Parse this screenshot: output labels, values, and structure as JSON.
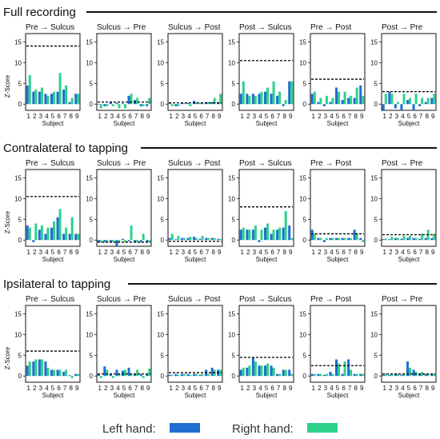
{
  "sections": [
    {
      "title": "Full recording",
      "panels": [
        {
          "title": "Pre → Sulcus"
        },
        {
          "title": "Sulcus → Pre"
        },
        {
          "title": "Sulcus → Post"
        },
        {
          "title": "Post → Sulcus"
        },
        {
          "title": "Pre → Post"
        },
        {
          "title": "Post → Pre"
        }
      ]
    },
    {
      "title": "Contralateral to tapping",
      "panels": [
        {
          "title": "Pre → Sulcus"
        },
        {
          "title": "Sulcus → Pre"
        },
        {
          "title": "Sulcus → Post"
        },
        {
          "title": "Post → Sulcus"
        },
        {
          "title": "Pre → Post"
        },
        {
          "title": "Post → Pre"
        }
      ]
    },
    {
      "title": "Ipsilateral to tapping",
      "panels": [
        {
          "title": "Pre → Sulcus"
        },
        {
          "title": "Sulcus → Pre"
        },
        {
          "title": "Sulcus → Post"
        },
        {
          "title": "Post → Sulcus"
        },
        {
          "title": "Pre → Post"
        },
        {
          "title": "Post → Pre"
        }
      ]
    }
  ],
  "axes": {
    "ylabel": "Z-Score",
    "xlabel": "Subject",
    "yticks": [
      "0",
      "5",
      "10",
      "15"
    ]
  },
  "legend": {
    "left_label": "Left hand:",
    "right_label": "Right hand:"
  },
  "colors": {
    "left": "#1f6fd1",
    "right": "#2fd18a",
    "threshold": "#000000"
  },
  "chart_data": {
    "type": "bar",
    "categories": [
      "1",
      "2",
      "3",
      "4",
      "5",
      "6",
      "7",
      "8",
      "9"
    ],
    "ylim": [
      -1.5,
      17
    ],
    "ylabel": "Z-Score",
    "xlabel": "Subject",
    "series_names": [
      "Left hand",
      "Right hand"
    ],
    "rows": [
      {
        "title": "Full recording",
        "panels": [
          {
            "title": "Pre → Sulcus",
            "threshold": 14,
            "left": [
              4.5,
              3,
              3,
              2.5,
              2.5,
              3,
              3.5,
              0.5,
              2.5
            ],
            "right": [
              7,
              3.5,
              4,
              2,
              3,
              7.5,
              4.5,
              1.5,
              2.5
            ]
          },
          {
            "title": "Sulcus → Pre",
            "threshold": 0.5,
            "left": [
              0,
              -0.5,
              0.5,
              0.3,
              0.2,
              2,
              1,
              -0.5,
              -0.5
            ],
            "right": [
              -1,
              -0.5,
              -0.5,
              -1,
              -1,
              2.5,
              1.5,
              -0.5,
              1.5
            ]
          },
          {
            "title": "Sulcus → Post",
            "threshold": 0.3,
            "left": [
              0.2,
              -0.5,
              0.3,
              0.3,
              0.8,
              0.2,
              0.5,
              0.5,
              0.5
            ],
            "right": [
              -0.5,
              -0.5,
              0.2,
              -0.5,
              0.5,
              0.3,
              0.5,
              1.5,
              2.5
            ]
          },
          {
            "title": "Post → Sulcus",
            "threshold": 10.5,
            "left": [
              2.5,
              2.5,
              2.5,
              2.5,
              3,
              2.5,
              2,
              -0.5,
              5.5
            ],
            "right": [
              5.5,
              2,
              2,
              3,
              4,
              5.5,
              3,
              1,
              5.5
            ]
          },
          {
            "title": "Pre → Post",
            "threshold": 6,
            "left": [
              2.5,
              0.5,
              -0.5,
              0.5,
              4,
              1,
              1.5,
              1.5,
              4.5
            ],
            "right": [
              3,
              1.5,
              2,
              1.5,
              3,
              3,
              2,
              4,
              2
            ]
          },
          {
            "title": "Post → Pre",
            "threshold": 3,
            "left": [
              -1.5,
              3,
              -1,
              -1.5,
              1,
              -1.5,
              -0.5,
              0.5,
              1.5
            ],
            "right": [
              2.5,
              2.5,
              0.5,
              2.5,
              1.5,
              2.5,
              1.5,
              1.5,
              2.5
            ]
          }
        ]
      },
      {
        "title": "Contralateral to tapping",
        "panels": [
          {
            "title": "Pre → Sulcus",
            "threshold": 10.5,
            "left": [
              3.5,
              -0.5,
              2.5,
              1.5,
              3,
              5.5,
              1.5,
              1.5,
              1.5
            ],
            "right": [
              3,
              4,
              3.5,
              3,
              4.5,
              7.5,
              3,
              5.5,
              1.5
            ]
          },
          {
            "title": "Sulcus → Pre",
            "threshold": -0.5,
            "left": [
              -0.5,
              -0.5,
              -0.5,
              -1.5,
              0.3,
              -0.3,
              -0.5,
              -0.5,
              -0.5
            ],
            "right": [
              -0.5,
              -0.5,
              -0.5,
              -0.5,
              -0.5,
              3.5,
              -0.5,
              1.5,
              -0.5
            ]
          },
          {
            "title": "Sulcus → Post",
            "threshold": -0.3,
            "left": [
              0.5,
              0.2,
              0.5,
              0.5,
              0.8,
              0.3,
              0.5,
              0.5,
              0.3
            ],
            "right": [
              1.5,
              1,
              0.5,
              0.8,
              0.5,
              1,
              0.5,
              0.5,
              0.3
            ]
          },
          {
            "title": "Post → Sulcus",
            "threshold": 8,
            "left": [
              2.5,
              2.5,
              2.5,
              -0.5,
              3,
              1.5,
              2.5,
              3,
              3.5
            ],
            "right": [
              3,
              2.5,
              3.5,
              2.5,
              4,
              2.5,
              3,
              7,
              0.5
            ]
          },
          {
            "title": "Pre → Post",
            "threshold": 1.5,
            "left": [
              2.5,
              0.5,
              -0.5,
              0.5,
              0.5,
              0.5,
              0.5,
              2.5,
              0.5
            ],
            "right": [
              1.5,
              0.5,
              0.5,
              0.5,
              0.5,
              0.5,
              0.5,
              1.5,
              -0.5
            ]
          },
          {
            "title": "Post → Pre",
            "threshold": 1.3,
            "left": [
              0.2,
              0.2,
              0.5,
              0.3,
              0.5,
              0.5,
              0.3,
              0.5,
              0.5
            ],
            "right": [
              0.3,
              0.8,
              0.5,
              1,
              1,
              0.5,
              1.5,
              2.5,
              1.5
            ]
          }
        ]
      },
      {
        "title": "Ipsilateral to tapping",
        "panels": [
          {
            "title": "Pre → Sulcus",
            "threshold": 6,
            "left": [
              2.5,
              3.5,
              4,
              3.5,
              1.5,
              1.5,
              1,
              0.2,
              0.5
            ],
            "right": [
              3.5,
              4,
              4,
              2,
              1.5,
              1.5,
              1.5,
              -0.5,
              0.5
            ]
          },
          {
            "title": "Sulcus → Pre",
            "threshold": 0.5,
            "left": [
              0.5,
              2.3,
              0.5,
              1.5,
              1.3,
              2,
              0.5,
              0.5,
              0.5
            ],
            "right": [
              -0.5,
              1.5,
              -0.5,
              0.5,
              1.5,
              0.5,
              1.5,
              -0.5,
              1.8
            ]
          },
          {
            "title": "Sulcus → Post",
            "threshold": 0.8,
            "left": [
              0.3,
              0.5,
              0.5,
              0.5,
              0.5,
              0.3,
              1.5,
              2,
              1.5
            ],
            "right": [
              0.3,
              0.3,
              0.5,
              0.3,
              0.5,
              0.5,
              0.5,
              1.5,
              1.5
            ]
          },
          {
            "title": "Post → Sulcus",
            "threshold": 4.5,
            "left": [
              1.5,
              2,
              4.5,
              2.5,
              2.5,
              2.5,
              0.5,
              1.5,
              1.5
            ],
            "right": [
              2,
              2.5,
              3.5,
              2.5,
              3,
              2,
              0.5,
              1.5,
              0.5
            ]
          },
          {
            "title": "Pre → Post",
            "threshold": 2.5,
            "left": [
              0.5,
              0.5,
              0.3,
              1,
              4,
              0.5,
              4,
              0.5,
              0.5
            ],
            "right": [
              0.5,
              0.5,
              0.5,
              0.5,
              3,
              3.5,
              1.5,
              0.5,
              0.5
            ]
          },
          {
            "title": "Post → Pre",
            "threshold": 0.5,
            "left": [
              0.3,
              0.3,
              0.5,
              0.3,
              3.5,
              1.5,
              0.5,
              0.5,
              0.5
            ],
            "right": [
              0.5,
              0.5,
              0.5,
              0.5,
              2,
              1,
              1,
              0.5,
              0.5
            ]
          }
        ]
      }
    ]
  }
}
